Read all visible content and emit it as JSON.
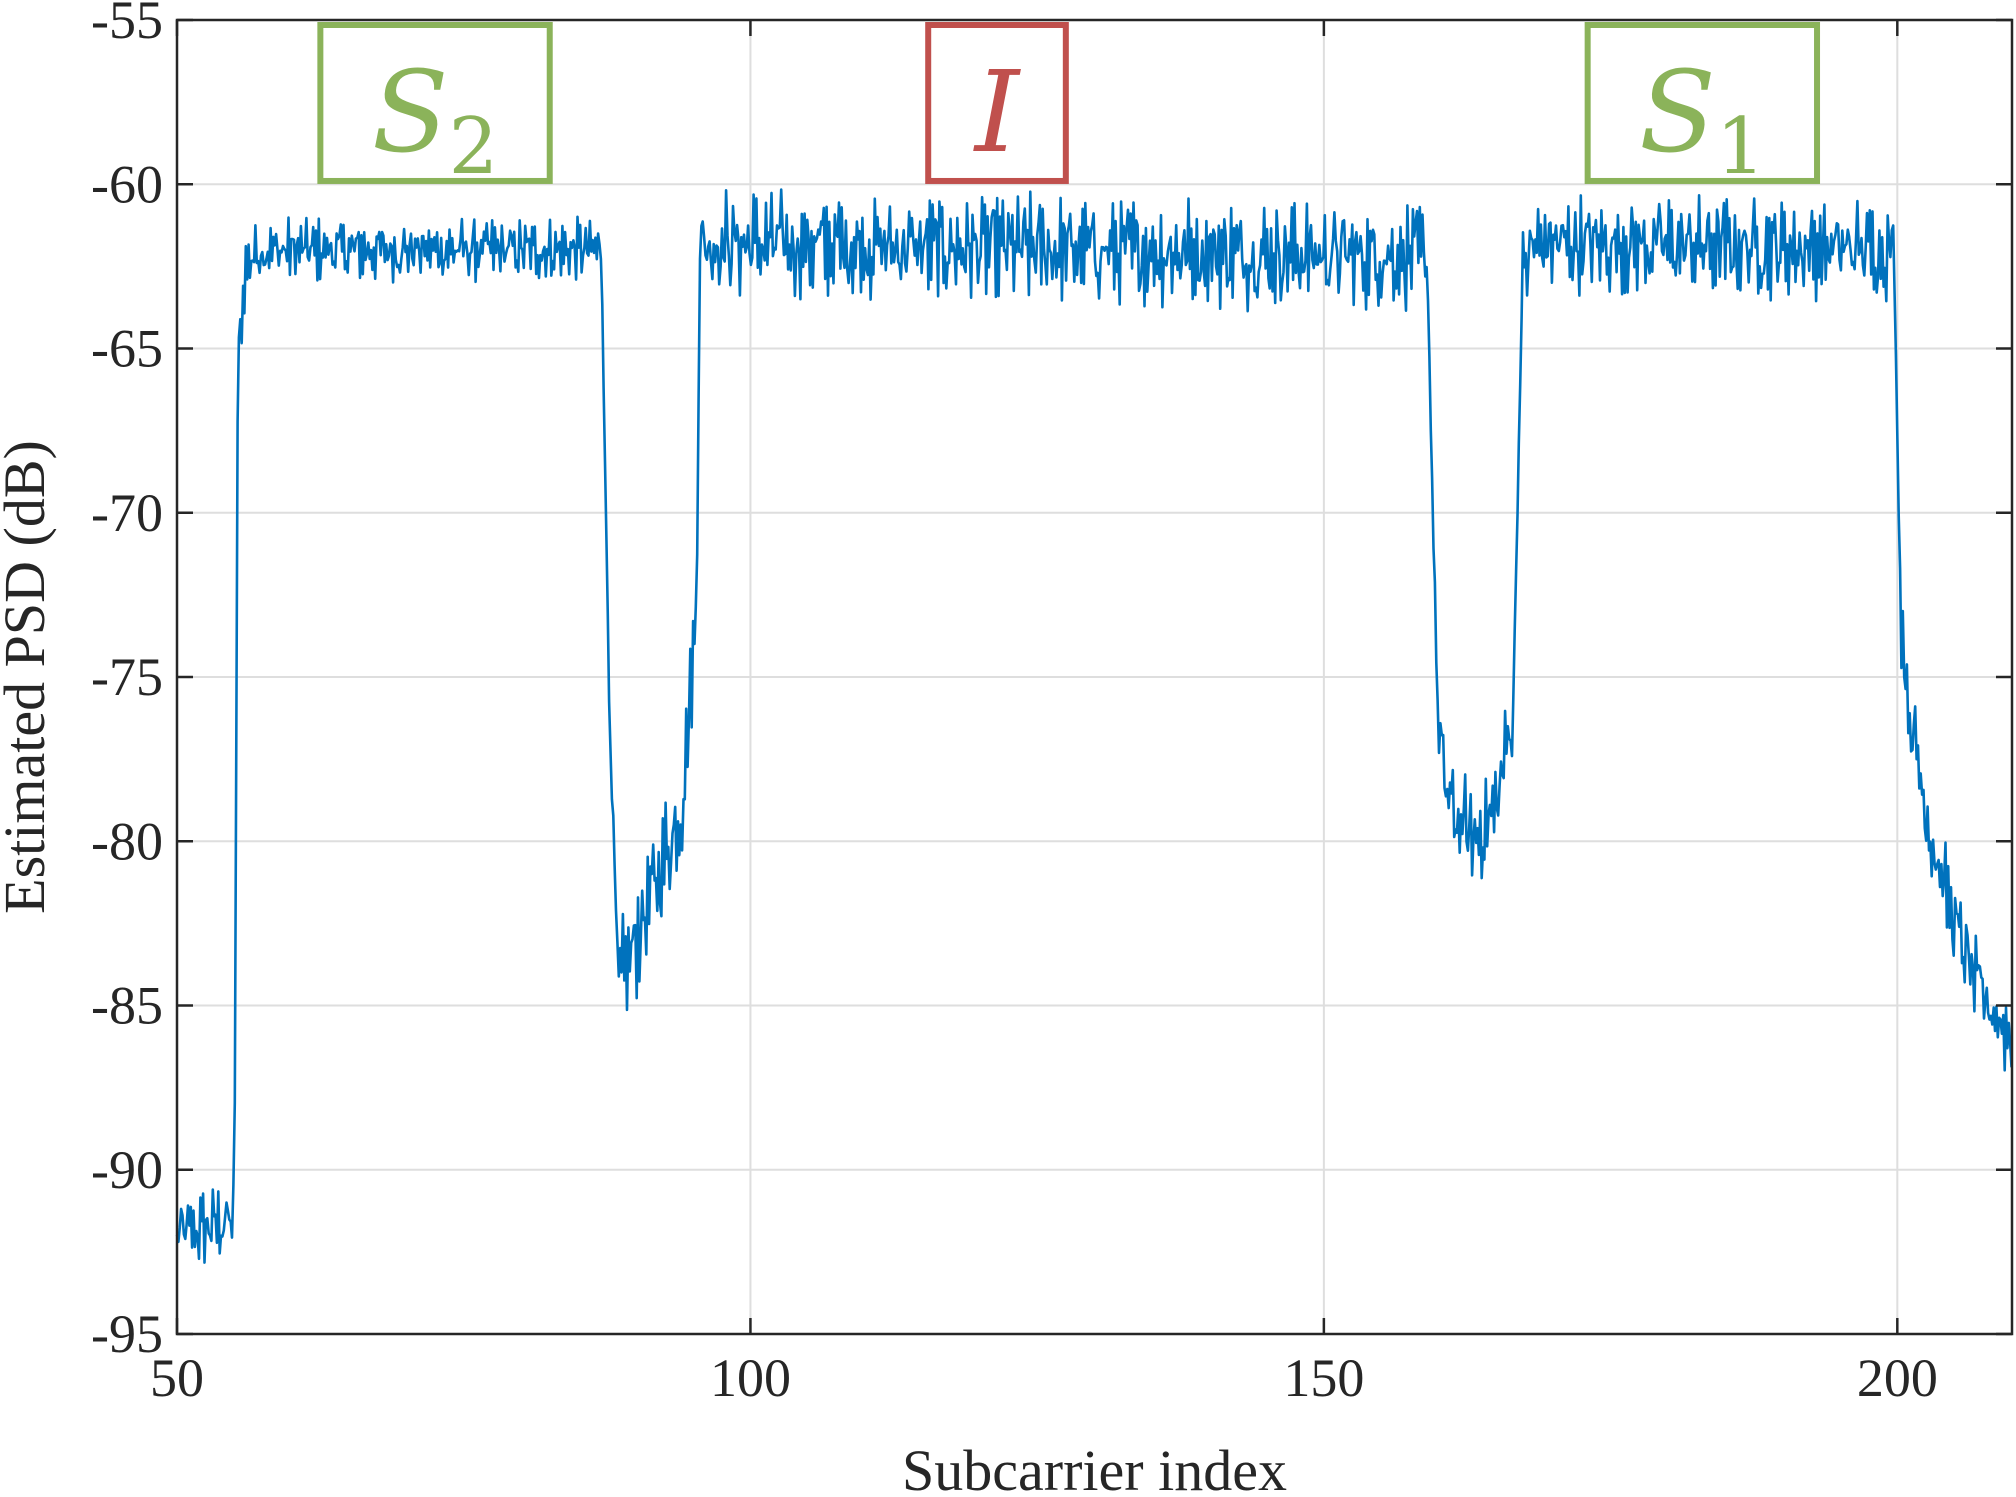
{
  "chart_data": {
    "type": "line",
    "title": "",
    "xlabel": "Subcarrier index",
    "ylabel": "Estimated PSD (dB)",
    "xlim": [
      50,
      210
    ],
    "ylim": [
      -95,
      -55
    ],
    "xticks": [
      "50",
      "100",
      "150",
      "200"
    ],
    "yticks": [
      "-55",
      "-60",
      "-65",
      "-70",
      "-75",
      "-80",
      "-85",
      "-90",
      "-95"
    ],
    "grid": true,
    "line_color": "#0072BD",
    "annotations": [
      {
        "main": "S",
        "sub": "2",
        "x_range": [
          62.5,
          82.5
        ],
        "color": "#8BB35A"
      },
      {
        "main": "I",
        "sub": "",
        "x_range": [
          115.5,
          127.5
        ],
        "color": "#C0504D"
      },
      {
        "main": "S",
        "sub": "1",
        "x_range": [
          173,
          193
        ],
        "color": "#8BB35A"
      }
    ],
    "series": [
      {
        "x": [
          50,
          55,
          55.3,
          56,
          57,
          87,
          87.7,
          88.5,
          90,
          92,
          94,
          95.3,
          95.6,
          96,
          97,
          159,
          159.5,
          160,
          161,
          163,
          165,
          166.5,
          167.3,
          168,
          169,
          199.7,
          200.3,
          201,
          203,
          205,
          207,
          209,
          210
        ],
        "y": [
          -92,
          -91.5,
          -65.5,
          -62.5,
          -62,
          -62,
          -76,
          -84.5,
          -83,
          -81,
          -79,
          -73,
          -62,
          -61.8,
          -61.8,
          -62.2,
          -70,
          -77,
          -79,
          -80,
          -79,
          -76,
          -63,
          -62,
          -61.8,
          -62,
          -73,
          -76,
          -80,
          -82.5,
          -84.5,
          -85.5,
          -86
        ]
      }
    ]
  }
}
